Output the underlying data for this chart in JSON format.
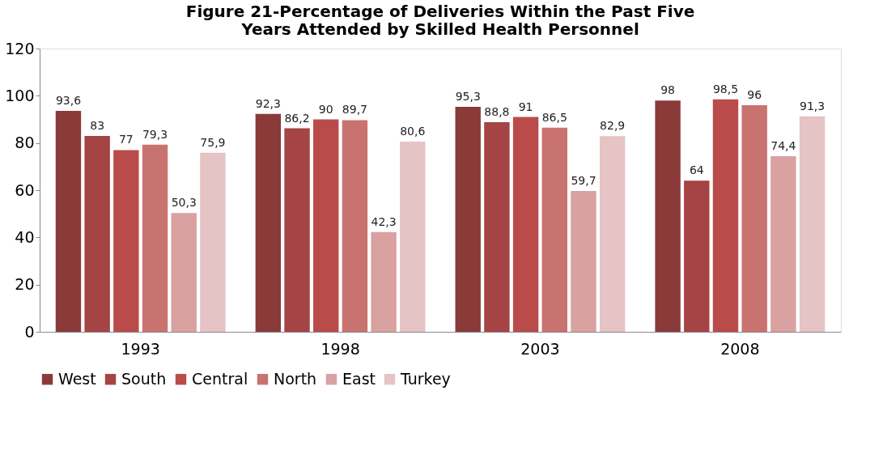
{
  "chart_data": {
    "type": "bar",
    "title": "Figure 21-Percentage of Deliveries Within the Past Five Years Attended by Skilled Health Personnel",
    "categories": [
      "1993",
      "1998",
      "2003",
      "2008"
    ],
    "series": [
      {
        "name": "West",
        "color": "#8b3a3a",
        "values": [
          93.6,
          92.3,
          95.3,
          98
        ],
        "value_labels": [
          "93,6",
          "92,3",
          "95,3",
          "98"
        ]
      },
      {
        "name": "South",
        "color": "#a54444",
        "values": [
          83,
          86.2,
          88.8,
          64
        ],
        "value_labels": [
          "83",
          "86,2",
          "88,8",
          "64"
        ]
      },
      {
        "name": "Central",
        "color": "#b94c4a",
        "values": [
          77,
          90,
          91,
          98.5
        ],
        "value_labels": [
          "77",
          "90",
          "91",
          "98,5"
        ]
      },
      {
        "name": "North",
        "color": "#c97370",
        "values": [
          79.3,
          89.7,
          86.5,
          96
        ],
        "value_labels": [
          "79,3",
          "89,7",
          "86,5",
          "96"
        ]
      },
      {
        "name": "East",
        "color": "#d9a1a0",
        "values": [
          50.3,
          42.3,
          59.7,
          74.4
        ],
        "value_labels": [
          "50,3",
          "42,3",
          "59,7",
          "74,4"
        ]
      },
      {
        "name": "Turkey",
        "color": "#e6c3c4",
        "values": [
          75.9,
          80.6,
          82.9,
          91.3
        ],
        "value_labels": [
          "75,9",
          "80,6",
          "82,9",
          "91,3"
        ]
      }
    ],
    "ylim": [
      0,
      120
    ],
    "yticks": [
      0,
      20,
      40,
      60,
      80,
      100,
      120
    ],
    "grid": false,
    "legend": "bottom"
  }
}
